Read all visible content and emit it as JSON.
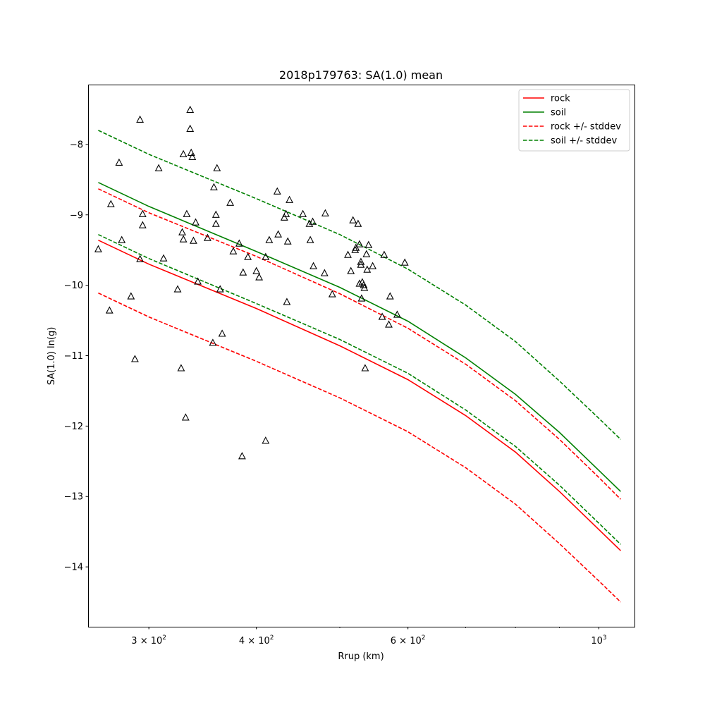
{
  "chart_data": {
    "type": "scatter",
    "title": "2018p179763: SA(1.0) mean",
    "xlabel": "Rrup (km)",
    "ylabel": "SA(1.0) ln(g)",
    "xscale": "log",
    "xlim": [
      255,
      1100
    ],
    "ylim": [
      -14.85,
      -7.15
    ],
    "grid": false,
    "legend_position": "top-right",
    "x_ticks_major": [
      {
        "value": 300,
        "base": "3",
        "exp": "2"
      },
      {
        "value": 400,
        "base": "4",
        "exp": "2"
      },
      {
        "value": 600,
        "base": "6",
        "exp": "2"
      },
      {
        "value": 1000,
        "base": "",
        "exp": "3"
      }
    ],
    "x_ticks_minor": [
      500,
      700,
      800,
      900
    ],
    "y_ticks": [
      -8,
      -9,
      -10,
      -11,
      -12,
      -13,
      -14
    ],
    "y_tick_labels": [
      "−8",
      "−9",
      "−10",
      "−11",
      "−12",
      "−13",
      "−14"
    ],
    "x_tick_times": "×",
    "x_tick_ten": "10",
    "series": [
      {
        "name": "rock",
        "style": "solid",
        "color": "#ff0000",
        "x": [
          262,
          300,
          400,
          500,
          600,
          700,
          800,
          900,
          1000,
          1060
        ],
        "y": [
          -9.36,
          -9.7,
          -10.33,
          -10.86,
          -11.34,
          -11.85,
          -12.37,
          -12.93,
          -13.47,
          -13.77
        ]
      },
      {
        "name": "soil",
        "style": "solid",
        "color": "#008000",
        "x": [
          262,
          300,
          400,
          500,
          600,
          700,
          800,
          900,
          1000,
          1060
        ],
        "y": [
          -8.54,
          -8.88,
          -9.52,
          -10.03,
          -10.51,
          -11.03,
          -11.55,
          -12.09,
          -12.63,
          -12.93
        ]
      },
      {
        "name": "rock +/- stddev",
        "style": "dashed",
        "color": "#ff0000",
        "x": [
          262,
          300,
          400,
          500,
          600,
          700,
          800,
          900,
          1000,
          1060
        ],
        "y": [
          -8.63,
          -8.97,
          -9.59,
          -10.12,
          -10.61,
          -11.12,
          -11.64,
          -12.19,
          -12.73,
          -13.04
        ]
      },
      {
        "name": "rock +/- stddev (lower)",
        "style": "dashed",
        "color": "#ff0000",
        "x": [
          262,
          300,
          400,
          500,
          600,
          700,
          800,
          900,
          1000,
          1060
        ],
        "y": [
          -10.11,
          -10.45,
          -11.08,
          -11.6,
          -12.08,
          -12.59,
          -13.11,
          -13.67,
          -14.2,
          -14.5
        ]
      },
      {
        "name": "soil +/- stddev",
        "style": "dashed",
        "color": "#008000",
        "x": [
          262,
          300,
          400,
          500,
          600,
          700,
          800,
          900,
          1000,
          1060
        ],
        "y": [
          -7.8,
          -8.14,
          -8.77,
          -9.28,
          -9.77,
          -10.28,
          -10.8,
          -11.36,
          -11.89,
          -12.19
        ]
      },
      {
        "name": "soil +/- stddev (lower)",
        "style": "dashed",
        "color": "#008000",
        "x": [
          262,
          300,
          400,
          500,
          600,
          700,
          800,
          900,
          1000,
          1060
        ],
        "y": [
          -9.28,
          -9.62,
          -10.26,
          -10.77,
          -11.25,
          -11.77,
          -12.29,
          -12.84,
          -13.38,
          -13.68
        ]
      }
    ],
    "legend": [
      {
        "label": "rock",
        "color": "#ff0000",
        "style": "solid"
      },
      {
        "label": "soil",
        "color": "#008000",
        "style": "solid"
      },
      {
        "label": "rock +/- stddev",
        "color": "#ff0000",
        "style": "dashed"
      },
      {
        "label": "soil +/- stddev",
        "color": "#008000",
        "style": "dashed"
      }
    ],
    "observations": {
      "marker": "triangle-open",
      "color": "#000000",
      "points": [
        [
          262,
          -9.49
        ],
        [
          270,
          -10.36
        ],
        [
          271,
          -8.85
        ],
        [
          277,
          -8.26
        ],
        [
          279,
          -9.36
        ],
        [
          286,
          -10.16
        ],
        [
          289,
          -11.05
        ],
        [
          293,
          -7.65
        ],
        [
          293,
          -9.63
        ],
        [
          295,
          -8.99
        ],
        [
          295,
          -9.15
        ],
        [
          308,
          -8.34
        ],
        [
          312,
          -9.62
        ],
        [
          324,
          -10.06
        ],
        [
          327,
          -11.18
        ],
        [
          328,
          -9.25
        ],
        [
          329,
          -8.14
        ],
        [
          329,
          -9.35
        ],
        [
          331,
          -11.88
        ],
        [
          332,
          -8.99
        ],
        [
          335,
          -7.51
        ],
        [
          335,
          -7.78
        ],
        [
          336,
          -8.12
        ],
        [
          337,
          -8.18
        ],
        [
          338,
          -9.37
        ],
        [
          340,
          -9.11
        ],
        [
          342,
          -9.95
        ],
        [
          351,
          -9.33
        ],
        [
          356,
          -10.82
        ],
        [
          357,
          -8.61
        ],
        [
          359,
          -9.13
        ],
        [
          359,
          -9.0
        ],
        [
          360,
          -8.34
        ],
        [
          363,
          -10.06
        ],
        [
          365,
          -10.69
        ],
        [
          373,
          -8.83
        ],
        [
          376,
          -9.52
        ],
        [
          382,
          -9.41
        ],
        [
          386,
          -9.82
        ],
        [
          391,
          -9.6
        ],
        [
          385,
          -12.43
        ],
        [
          400,
          -9.8
        ],
        [
          403,
          -9.89
        ],
        [
          410,
          -12.21
        ],
        [
          410,
          -9.6
        ],
        [
          414,
          -9.36
        ],
        [
          423,
          -8.67
        ],
        [
          424,
          -9.28
        ],
        [
          431,
          -9.04
        ],
        [
          433,
          -8.99
        ],
        [
          434,
          -10.24
        ],
        [
          435,
          -9.38
        ],
        [
          437,
          -8.79
        ],
        [
          453,
          -8.99
        ],
        [
          461,
          -9.13
        ],
        [
          462,
          -9.36
        ],
        [
          465,
          -9.1
        ],
        [
          466,
          -9.73
        ],
        [
          480,
          -9.83
        ],
        [
          481,
          -8.98
        ],
        [
          490,
          -10.13
        ],
        [
          511,
          -9.57
        ],
        [
          515,
          -9.8
        ],
        [
          518,
          -9.08
        ],
        [
          521,
          -9.5
        ],
        [
          522,
          -9.47
        ],
        [
          525,
          -9.13
        ],
        [
          527,
          -9.98
        ],
        [
          527,
          -9.42
        ],
        [
          529,
          -9.67
        ],
        [
          529,
          -9.71
        ],
        [
          530,
          -10.19
        ],
        [
          531,
          -9.96
        ],
        [
          533,
          -10.0
        ],
        [
          534,
          -10.04
        ],
        [
          535,
          -11.18
        ],
        [
          537,
          -9.56
        ],
        [
          538,
          -9.78
        ],
        [
          540,
          -9.43
        ],
        [
          546,
          -9.73
        ],
        [
          560,
          -10.45
        ],
        [
          563,
          -9.57
        ],
        [
          570,
          -10.56
        ],
        [
          572,
          -10.16
        ],
        [
          583,
          -10.42
        ],
        [
          595,
          -9.68
        ]
      ]
    }
  }
}
